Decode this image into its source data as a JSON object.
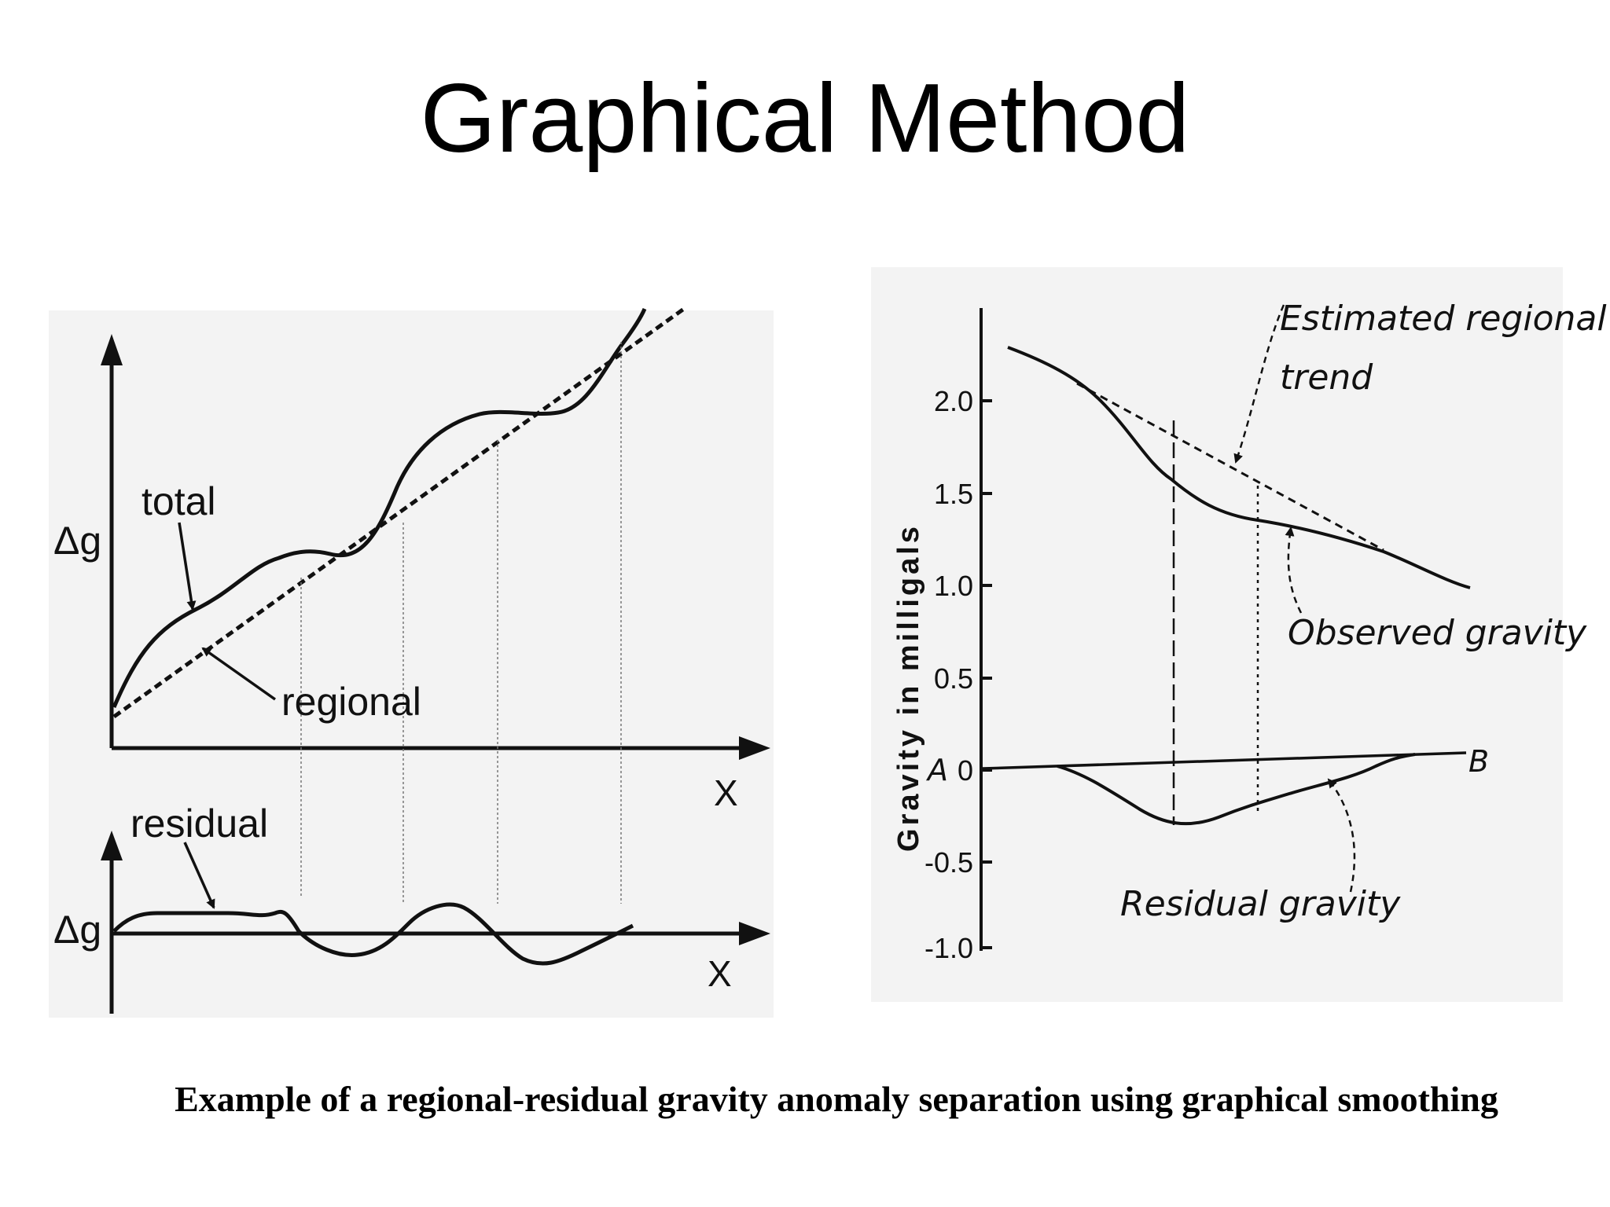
{
  "slide": {
    "title": "Graphical Method",
    "caption": "Example of a regional-residual gravity anomaly separation using graphical smoothing"
  },
  "left_diagram": {
    "top_panel": {
      "y_label": "Δg",
      "x_label": "X",
      "curve_labels": {
        "total": "total",
        "regional": "regional"
      }
    },
    "bottom_panel": {
      "y_label": "Δg",
      "x_label": "X",
      "curve_labels": {
        "residual": "residual"
      }
    }
  },
  "right_diagram": {
    "y_axis_title": "Gravity in milligals",
    "y_ticks": [
      "2.0",
      "1.5",
      "1.0",
      "0.5",
      "0",
      "-0.5",
      "-1.0"
    ],
    "point_labels": {
      "a": "A",
      "b": "B"
    },
    "annotations": {
      "regional_line1": "Estimated regional",
      "regional_line2": "trend",
      "observed": "Observed gravity",
      "residual": "Residual gravity"
    }
  },
  "colors": {
    "ink": "#111111",
    "panel_bg": "#f3f3f3"
  }
}
